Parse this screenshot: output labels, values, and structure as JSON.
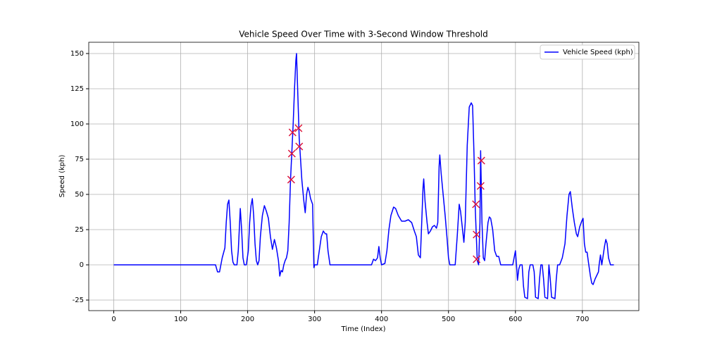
{
  "chart_data": {
    "type": "line",
    "title": "Vehicle Speed Over Time with 3-Second Window Threshold",
    "x_label": "Time (Index)",
    "y_label": "Speed (kph)",
    "x": [
      0,
      152,
      155,
      158,
      162,
      166,
      168,
      170,
      172,
      174,
      176,
      178,
      180,
      184,
      186,
      189,
      191,
      193,
      195,
      198,
      201,
      203,
      205,
      207,
      209,
      211,
      213,
      215,
      217,
      219,
      222,
      225,
      228,
      231,
      234,
      237,
      240,
      243,
      246,
      248,
      250,
      252,
      254,
      256,
      258,
      260,
      262,
      264,
      266,
      268,
      270,
      272,
      273,
      275,
      277,
      279,
      281,
      284,
      286,
      288,
      290,
      292,
      294,
      297,
      299,
      300,
      304,
      307,
      310,
      313,
      316,
      318,
      320,
      323,
      330,
      385,
      388,
      391,
      394,
      396,
      398,
      400,
      405,
      408,
      411,
      414,
      418,
      421,
      425,
      430,
      435,
      440,
      445,
      449,
      452,
      455,
      458,
      460,
      462,
      463,
      465,
      468,
      470,
      473,
      476,
      479,
      482,
      484,
      486,
      487,
      489,
      492,
      495,
      498,
      500,
      502,
      505,
      510,
      513,
      516,
      518,
      521,
      523,
      525,
      528,
      531,
      534,
      536,
      538,
      540,
      542,
      543,
      545,
      547,
      548,
      550,
      552,
      554,
      556,
      559,
      561,
      563,
      566,
      569,
      572,
      575,
      578,
      581,
      590,
      596,
      598,
      600,
      602,
      603,
      605,
      607,
      610,
      612,
      614,
      618,
      620,
      622,
      626,
      628,
      630,
      634,
      636,
      638,
      640,
      642,
      644,
      648,
      650,
      652,
      654,
      659,
      661,
      663,
      666,
      670,
      674,
      677,
      680,
      682,
      685,
      688,
      691,
      693,
      696,
      699,
      701,
      703,
      705,
      707,
      709,
      712,
      714,
      716,
      719,
      722,
      724,
      725,
      727,
      729,
      733,
      735,
      737,
      739,
      742,
      747
    ],
    "series": [
      {
        "name": "Vehicle Speed (kph)",
        "color": "#0000ff",
        "values": [
          0,
          0,
          -5,
          -5,
          5,
          12,
          30,
          43,
          46,
          30,
          10,
          2,
          0,
          0,
          10,
          40,
          25,
          5,
          0,
          0,
          10,
          30,
          42,
          47,
          35,
          15,
          3,
          0,
          3,
          20,
          35,
          42,
          38,
          33,
          20,
          11,
          18,
          12,
          3,
          -8,
          -4,
          -5,
          0,
          3,
          5,
          10,
          30,
          60,
          80,
          100,
          125,
          145,
          150,
          120,
          90,
          75,
          60,
          45,
          37,
          50,
          55,
          52,
          47,
          43,
          -2,
          0,
          0,
          10,
          20,
          24,
          22,
          22,
          10,
          0,
          0,
          0,
          4,
          3,
          5,
          13,
          5,
          0,
          1,
          10,
          25,
          35,
          41,
          40,
          35,
          31,
          31,
          32,
          30,
          24,
          20,
          7,
          5,
          30,
          55,
          61,
          45,
          30,
          22,
          24,
          27,
          28,
          26,
          30,
          70,
          78,
          65,
          50,
          35,
          18,
          5,
          0,
          0,
          0,
          20,
          43,
          38,
          25,
          16,
          30,
          85,
          112,
          115,
          113,
          80,
          40,
          15,
          3,
          0,
          30,
          81,
          30,
          5,
          3,
          15,
          30,
          34,
          33,
          25,
          10,
          6,
          6,
          0,
          0,
          0,
          0,
          5,
          10,
          -3,
          -11,
          -3,
          0,
          0,
          -15,
          -23,
          -24,
          -5,
          0,
          0,
          -5,
          -23,
          -24,
          -10,
          0,
          0,
          -10,
          -23,
          -24,
          0,
          -10,
          -23,
          -24,
          -10,
          0,
          0,
          5,
          15,
          35,
          50,
          52,
          40,
          30,
          22,
          20,
          27,
          31,
          33,
          15,
          9,
          9,
          2,
          -8,
          -13,
          -14,
          -10,
          -7,
          -5,
          0,
          7,
          0,
          13,
          18,
          15,
          5,
          0,
          0
        ]
      }
    ],
    "points": {
      "color": "#dc143c",
      "marker": "x",
      "x": [
        265,
        266,
        267,
        276,
        277,
        541,
        542,
        542,
        548,
        549
      ],
      "values": [
        60.5,
        79,
        94,
        97,
        84,
        43,
        21.5,
        4,
        56,
        74
      ]
    },
    "xlim": [
      -37.35,
      784.35
    ],
    "ylim": [
      -32.5,
      158
    ],
    "xticks": [
      0,
      100,
      200,
      300,
      400,
      500,
      600,
      700
    ],
    "yticks": [
      -25,
      0,
      25,
      50,
      75,
      100,
      125,
      150
    ],
    "grid": true,
    "legend": "upper right"
  }
}
